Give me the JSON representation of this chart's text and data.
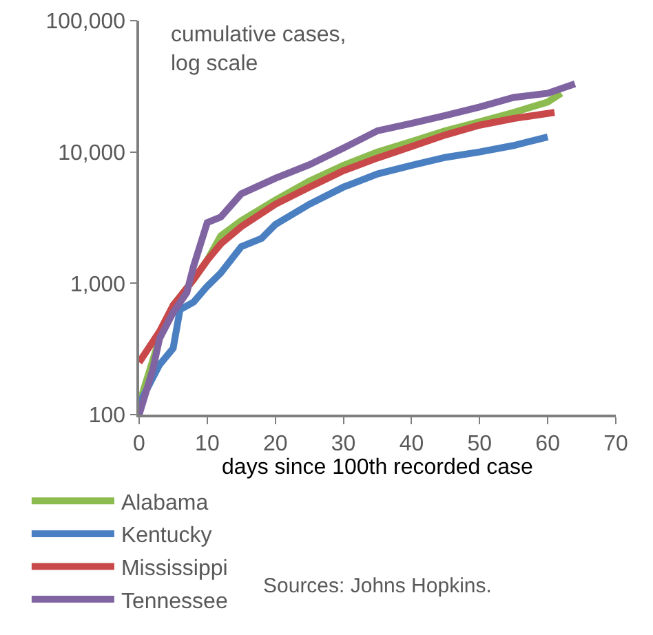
{
  "chart_data": {
    "type": "line",
    "title": "cumulative cases,\nlog scale",
    "xlabel": "days since 100th recorded case",
    "x": [
      0,
      3,
      5,
      8,
      10,
      12,
      15,
      20,
      25,
      30,
      35,
      40,
      45,
      50,
      55,
      60,
      62
    ],
    "series": [
      {
        "name": "Alabama",
        "color": "#8cbb4f",
        "values": [
          120,
          380,
          680,
          1070,
          1500,
          2300,
          3000,
          4300,
          6000,
          7900,
          10000,
          12000,
          14500,
          17000,
          20000,
          24000,
          28000
        ]
      },
      {
        "name": "Kentucky",
        "color": "#4a7fc1",
        "x": [
          0,
          3,
          5,
          6,
          8,
          10,
          12,
          15,
          18,
          20,
          25,
          30,
          35,
          40,
          45,
          50,
          55,
          60
        ],
        "values": [
          120,
          240,
          320,
          630,
          720,
          950,
          1200,
          1900,
          2200,
          2800,
          4000,
          5400,
          6800,
          7900,
          9100,
          10000,
          11200,
          13000
        ]
      },
      {
        "name": "Mississippi",
        "color": "#c9484a",
        "x": [
          0,
          3,
          5,
          8,
          10,
          12,
          15,
          20,
          25,
          30,
          35,
          40,
          45,
          50,
          55,
          61
        ],
        "values": [
          250,
          430,
          680,
          1070,
          1500,
          2000,
          2700,
          4000,
          5400,
          7200,
          9000,
          11000,
          13500,
          16000,
          18000,
          20000
        ]
      },
      {
        "name": "Tennessee",
        "color": "#8064a2",
        "x": [
          0,
          2,
          3,
          5,
          7,
          8,
          10,
          12,
          15,
          20,
          25,
          30,
          35,
          40,
          45,
          50,
          55,
          60,
          64
        ],
        "values": [
          100,
          220,
          380,
          600,
          850,
          1350,
          2900,
          3200,
          4800,
          6300,
          8000,
          10700,
          14500,
          16500,
          19000,
          22000,
          26000,
          28000,
          33000
        ]
      }
    ],
    "log": "y",
    "xlim": [
      0,
      70
    ],
    "xticks": [
      0,
      10,
      20,
      30,
      40,
      50,
      60,
      70
    ],
    "ylim": [
      100,
      100000
    ],
    "yticks": [
      {
        "value": 100,
        "label": "100"
      },
      {
        "value": 1000,
        "label": "1,000"
      },
      {
        "value": 10000,
        "label": "10,000"
      },
      {
        "value": 100000,
        "label": "100,000"
      }
    ],
    "legend": "bottom",
    "annotations": [
      "Sources: Johns Hopkins."
    ]
  }
}
